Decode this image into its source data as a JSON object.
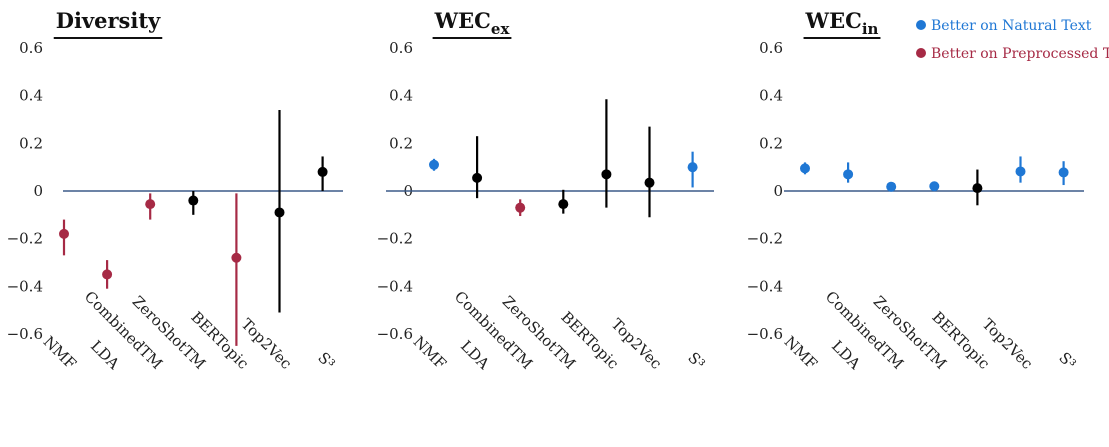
{
  "colors": {
    "natural": "#1f77d4",
    "preprocessed": "#a62a45",
    "neutral": "#000000",
    "baseline": "#3b5a88"
  },
  "legend": {
    "natural_label": "Better on Natural Text",
    "preprocessed_label": "Better on Preprocessed Text"
  },
  "chart_data": [
    {
      "type": "scatter",
      "title": {
        "main": "Diversity",
        "sub": ""
      },
      "categories": [
        "NMF",
        "LDA",
        "CombinedTM",
        "ZeroShotTM",
        "BERTopic",
        "Top2Vec",
        "S³"
      ],
      "yticks": [
        "0.6",
        "0.4",
        "0.2",
        "0",
        "-0.2",
        "-0.4",
        "-0.6"
      ],
      "ylim": [
        -0.7,
        0.65
      ],
      "points": [
        {
          "y": -0.18,
          "lo": -0.27,
          "hi": -0.12,
          "group": "preprocessed"
        },
        {
          "y": -0.35,
          "lo": -0.41,
          "hi": -0.29,
          "group": "preprocessed"
        },
        {
          "y": -0.055,
          "lo": -0.12,
          "hi": -0.01,
          "group": "preprocessed"
        },
        {
          "y": -0.04,
          "lo": -0.1,
          "hi": 0.0,
          "group": "neutral"
        },
        {
          "y": -0.28,
          "lo": -0.65,
          "hi": -0.01,
          "group": "preprocessed"
        },
        {
          "y": -0.09,
          "lo": -0.51,
          "hi": 0.34,
          "group": "neutral"
        },
        {
          "y": 0.08,
          "lo": 0.0,
          "hi": 0.145,
          "group": "neutral"
        }
      ]
    },
    {
      "type": "scatter",
      "title": {
        "main": "WEC",
        "sub": "ex"
      },
      "categories": [
        "NMF",
        "LDA",
        "CombinedTM",
        "ZeroShotTM",
        "BERTopic",
        "Top2Vec",
        "S³"
      ],
      "yticks": [
        "0.6",
        "0.4",
        "0.2",
        "0",
        "-0.2",
        "-0.4",
        "-0.6"
      ],
      "ylim": [
        -0.7,
        0.65
      ],
      "points": [
        {
          "y": 0.11,
          "lo": 0.085,
          "hi": 0.135,
          "group": "natural"
        },
        {
          "y": 0.055,
          "lo": -0.03,
          "hi": 0.23,
          "group": "neutral"
        },
        {
          "y": -0.07,
          "lo": -0.105,
          "hi": -0.035,
          "group": "preprocessed"
        },
        {
          "y": -0.055,
          "lo": -0.095,
          "hi": 0.005,
          "group": "neutral"
        },
        {
          "y": 0.07,
          "lo": -0.07,
          "hi": 0.385,
          "group": "neutral"
        },
        {
          "y": 0.035,
          "lo": -0.11,
          "hi": 0.27,
          "group": "neutral"
        },
        {
          "y": 0.1,
          "lo": 0.015,
          "hi": 0.165,
          "group": "natural"
        }
      ]
    },
    {
      "type": "scatter",
      "title": {
        "main": "WEC",
        "sub": "in"
      },
      "categories": [
        "NMF",
        "LDA",
        "CombinedTM",
        "ZeroShotTM",
        "BERTopic",
        "Top2Vec",
        "S³"
      ],
      "yticks": [
        "0.6",
        "0.4",
        "0.2",
        "0",
        "-0.2",
        "-0.4",
        "-0.6"
      ],
      "ylim": [
        -0.7,
        0.65
      ],
      "points": [
        {
          "y": 0.095,
          "lo": 0.07,
          "hi": 0.12,
          "group": "natural"
        },
        {
          "y": 0.07,
          "lo": 0.035,
          "hi": 0.12,
          "group": "natural"
        },
        {
          "y": 0.018,
          "lo": 0.008,
          "hi": 0.028,
          "group": "natural"
        },
        {
          "y": 0.02,
          "lo": 0.01,
          "hi": 0.03,
          "group": "natural"
        },
        {
          "y": 0.012,
          "lo": -0.06,
          "hi": 0.09,
          "group": "neutral"
        },
        {
          "y": 0.082,
          "lo": 0.035,
          "hi": 0.145,
          "group": "natural"
        },
        {
          "y": 0.078,
          "lo": 0.025,
          "hi": 0.125,
          "group": "natural"
        }
      ]
    }
  ]
}
